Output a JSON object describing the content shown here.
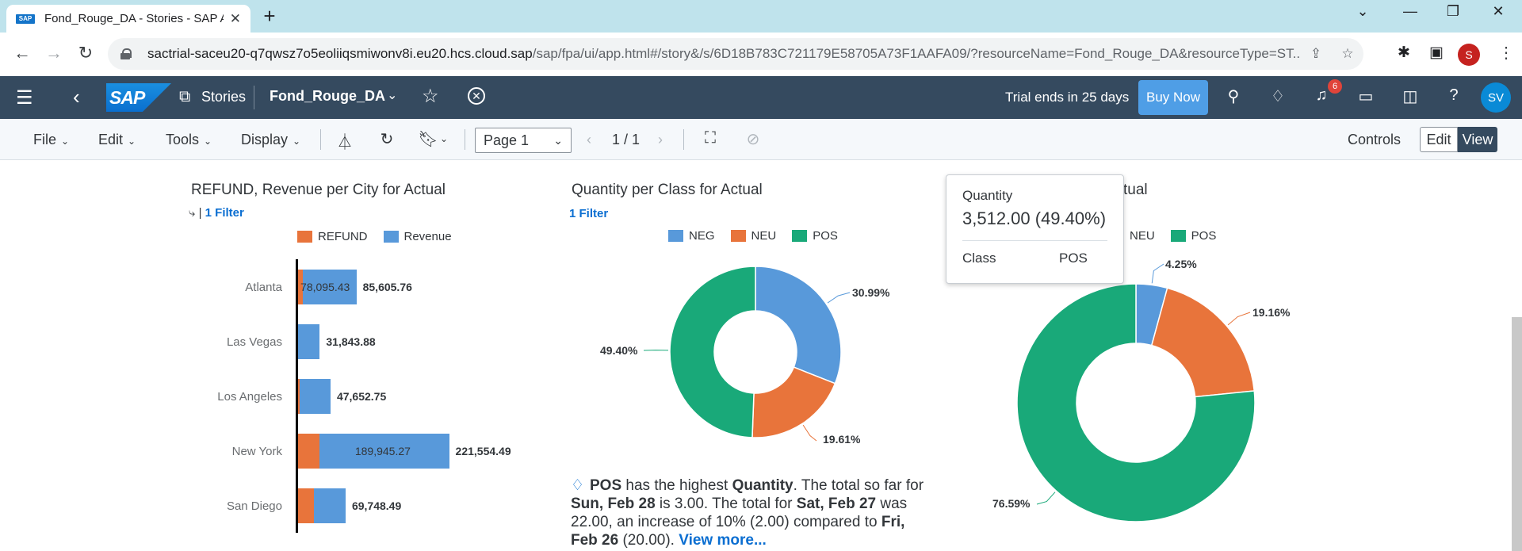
{
  "browser": {
    "tab_title": "Fond_Rouge_DA - Stories - SAP A",
    "tab_favicon": "SAP",
    "url_host": "sactrial-saceu20-q7qwsz7o5eoliiqsmiwonv8i.eu20.hcs.cloud.sap",
    "url_path": "/sap/fpa/ui/app.html#/story&/s/6D18B783C721179E58705A73F1AAFA09/?resourceName=Fond_Rouge_DA&resourceType=ST...",
    "profile_initial": "S"
  },
  "shell": {
    "logo_text": "SAP",
    "stories_label": "Stories",
    "story_name": "Fond_Rouge_DA",
    "trial_text": "Trial ends in 25 days",
    "buy_now": "Buy Now",
    "notification_count": "6",
    "avatar_initials": "SV"
  },
  "toolbar": {
    "file": "File",
    "edit": "Edit",
    "tools": "Tools",
    "display": "Display",
    "page_select": "Page 1",
    "pager": "1 / 1",
    "controls": "Controls",
    "edit_btn": "Edit",
    "view_btn": "View"
  },
  "colors": {
    "refund": "#e8743b",
    "revenue": "#5899da",
    "neg": "#5899da",
    "neu": "#e8743b",
    "pos": "#19a979"
  },
  "chart1": {
    "title": "REFUND, Revenue per City for Actual",
    "filter": "1 Filter",
    "legend": [
      "REFUND",
      "Revenue"
    ],
    "chart_data": {
      "type": "bar",
      "title": "REFUND, Revenue per City for Actual",
      "categories": [
        "Atlanta",
        "Las Vegas",
        "Los Angeles",
        "New York",
        "San Diego"
      ],
      "series": [
        {
          "name": "REFUND",
          "values": [
            7510.33,
            0,
            2000,
            31609.22,
            23000
          ]
        },
        {
          "name": "Revenue",
          "values": [
            78095.43,
            31843.88,
            45652.75,
            189945.27,
            46748.49
          ]
        }
      ],
      "totals": [
        "85,605.76",
        "31,843.88",
        "47,652.75",
        "221,554.49",
        "69,748.49"
      ],
      "inner_labels": [
        "78,095.43",
        "",
        "",
        "189,945.27",
        ""
      ]
    }
  },
  "chart2": {
    "title": "Quantity per Class for Actual",
    "filter": "1 Filter",
    "legend": [
      "NEG",
      "NEU",
      "POS"
    ],
    "chart_data": {
      "type": "pie",
      "title": "Quantity per Class for Actual",
      "categories": [
        "NEG",
        "NEU",
        "POS"
      ],
      "values": [
        30.99,
        19.61,
        49.4
      ],
      "labels": [
        "30.99%",
        "19.61%",
        "49.40%"
      ]
    }
  },
  "chart3": {
    "title": "tual",
    "legend": [
      "NEU",
      "POS"
    ],
    "chart_data": {
      "type": "pie",
      "categories": [
        "NEG",
        "NEU",
        "POS"
      ],
      "values": [
        4.25,
        19.16,
        76.59
      ],
      "labels": [
        "4.25%",
        "19.16%",
        "76.59%"
      ]
    }
  },
  "tooltip": {
    "measure": "Quantity",
    "value": "3,512.00 (49.40%)",
    "dim_label": "Class",
    "dim_value": "POS"
  },
  "insight": {
    "p1": "POS",
    "p2": " has the highest ",
    "p3": "Quantity",
    "p4": ". The total so far for ",
    "p5": "Sun, Feb 28",
    "p6": " is 3.00. The total for ",
    "p7": "Sat, Feb 27",
    "p8": " was 22.00, an increase of 10% (2.00) compared to ",
    "p9": "Fri, Feb 26",
    "p10": " (20.00). ",
    "more": "View more..."
  }
}
